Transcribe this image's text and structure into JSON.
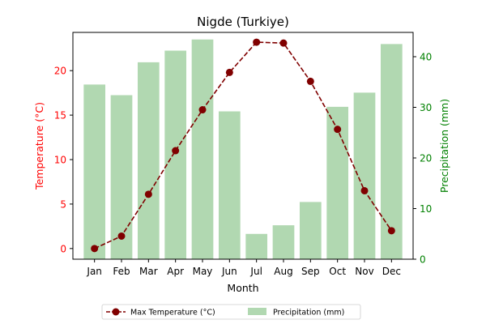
{
  "chart_data": {
    "type": "bar+line",
    "title": "Nigde (Turkiye)",
    "xlabel": "Month",
    "categories": [
      "Jan",
      "Feb",
      "Mar",
      "Apr",
      "May",
      "Jun",
      "Jul",
      "Aug",
      "Sep",
      "Oct",
      "Nov",
      "Dec"
    ],
    "left_axis": {
      "label": "Temperature (°C)",
      "color": "#ff0000",
      "ylim": [
        -1.2,
        24.3
      ],
      "ticks": [
        0,
        5,
        10,
        15,
        20
      ]
    },
    "right_axis": {
      "label": "Precipitation (mm)",
      "color": "#008000",
      "ylim": [
        0,
        44.8
      ],
      "ticks": [
        0,
        10,
        20,
        30,
        40
      ]
    },
    "series": [
      {
        "name": "Max Temperature (°C)",
        "kind": "line",
        "axis": "left",
        "color": "#800000",
        "values": [
          0.0,
          1.4,
          6.1,
          11.0,
          15.6,
          19.8,
          23.2,
          23.1,
          18.8,
          13.4,
          6.5,
          2.0
        ]
      },
      {
        "name": "Precipitation (mm)",
        "kind": "bar",
        "axis": "right",
        "color": "#b1d8b1",
        "values": [
          34.5,
          32.4,
          38.9,
          41.2,
          43.4,
          29.2,
          5.0,
          6.7,
          11.3,
          30.1,
          32.9,
          42.5
        ]
      }
    ],
    "legend": {
      "placement": "bottom-center",
      "columns": 2
    }
  }
}
